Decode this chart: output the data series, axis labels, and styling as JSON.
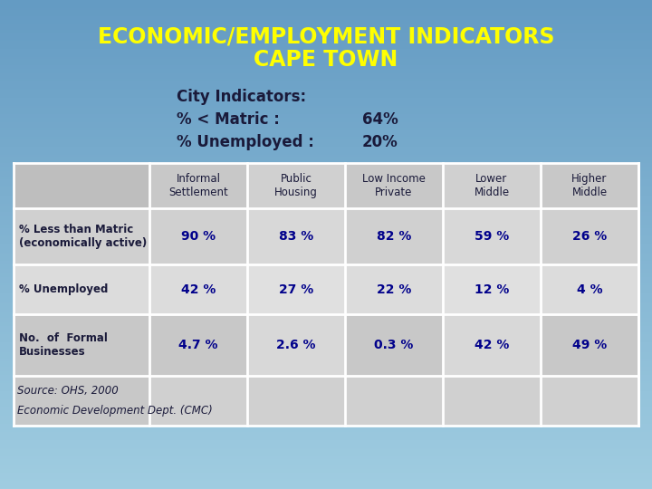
{
  "title_line1": "ECONOMIC/EMPLOYMENT INDICATORS",
  "title_line2": "CAPE TOWN",
  "title_color": "#FFFF00",
  "bg_color_top": "#6BA8CC",
  "bg_color_bottom": "#A8CCE0",
  "city_indicators_label": "City Indicators:",
  "matric_label": "% < Matric :",
  "matric_value": "64%",
  "unemployed_label": "% Unemployed :",
  "unemployed_value": "20%",
  "col_headers": [
    "Informal\nSettlement",
    "Public\nHousing",
    "Low Income\nPrivate",
    "Lower\nMiddle",
    "Higher\nMiddle"
  ],
  "row_labels": [
    "% Less than Matric\n(economically active)",
    "% Unemployed",
    "No.  of  Formal\nBusinesses"
  ],
  "table_data": [
    [
      "90 %",
      "83 %",
      "82 %",
      "59 %",
      "26 %"
    ],
    [
      "42 %",
      "27 %",
      "22 %",
      "12 %",
      "4 %"
    ],
    [
      "4.7 %",
      "2.6 %",
      "0.3 %",
      "42 %",
      "49 %"
    ]
  ],
  "source_line1": "Source: OHS, 2000",
  "source_line2": "Economic Development Dept. (CMC)",
  "table_header_bg": "#C8C8C8",
  "table_row0_bg": "#D0D0D0",
  "table_row1_bg": "#DCDCDC",
  "table_row2_bg": "#CACACA",
  "table_footer_bg": "#C4C4C4",
  "table_footer_data_bg": "#D0D0D0",
  "table_border_color": "#FFFFFF",
  "text_dark": "#1A1A3A",
  "data_color": "#00008B",
  "header_text_color": "#1A1A3A"
}
